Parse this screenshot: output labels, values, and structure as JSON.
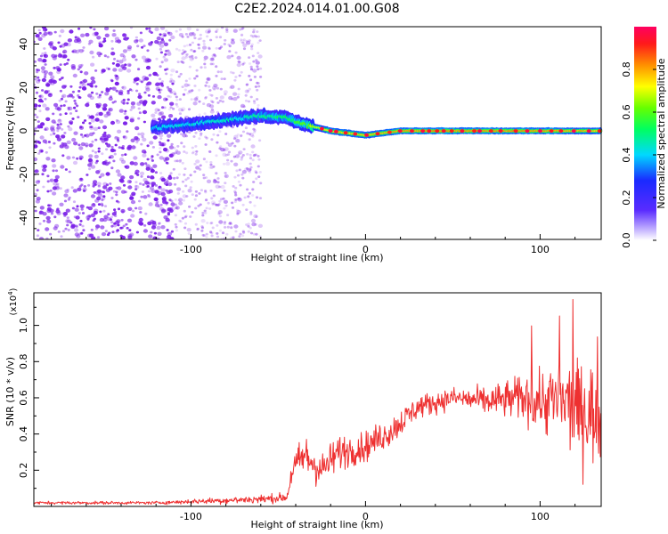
{
  "chart_data": [
    {
      "type": "heatmap",
      "title": "C2E2.2024.014.01.00.G08",
      "xlabel": "Height of straight line (km)",
      "ylabel": "Frequency (Hz)",
      "xlim": [
        -190,
        135
      ],
      "ylim": [
        -50,
        48
      ],
      "x_ticks": [
        -100,
        0,
        100
      ],
      "y_ticks": [
        -40,
        -20,
        0,
        20,
        40
      ],
      "colorbar": {
        "label": "Normalized spectral amplitude",
        "range": [
          0,
          1
        ],
        "ticks": [
          "0.0",
          "0.2",
          "0.4",
          "0.6",
          "0.8"
        ]
      },
      "ridge": [
        {
          "x": -120,
          "y": 1.5,
          "amp": 0.45
        },
        {
          "x": -100,
          "y": 3.0,
          "amp": 0.5
        },
        {
          "x": -80,
          "y": 5.0,
          "amp": 0.5
        },
        {
          "x": -60,
          "y": 7.0,
          "amp": 0.55
        },
        {
          "x": -45,
          "y": 6.0,
          "amp": 0.6
        },
        {
          "x": -35,
          "y": 3.0,
          "amp": 0.7
        },
        {
          "x": -20,
          "y": 0.0,
          "amp": 0.9
        },
        {
          "x": 0,
          "y": -2.0,
          "amp": 0.9
        },
        {
          "x": 20,
          "y": 0.0,
          "amp": 0.95
        },
        {
          "x": 60,
          "y": 0.0,
          "amp": 0.95
        },
        {
          "x": 100,
          "y": 0.0,
          "amp": 0.95
        },
        {
          "x": 135,
          "y": 0.0,
          "amp": 0.9
        }
      ]
    },
    {
      "type": "line",
      "xlabel": "Height of straight line (km)",
      "ylabel": "SNR (10 * v/v)",
      "y_multiplier": "(x10",
      "y_multiplier_exp": "4",
      "y_multiplier_close": ")",
      "xlim": [
        -190,
        135
      ],
      "ylim": [
        0,
        1.18
      ],
      "x_ticks": [
        -100,
        0,
        100
      ],
      "y_ticks": [
        "0.2",
        "0.4",
        "0.6",
        "0.8",
        "1.0"
      ],
      "series_color": "#ee3030",
      "envelope": [
        {
          "x": -190,
          "mean": 0.02,
          "spread": 0.01
        },
        {
          "x": -120,
          "mean": 0.02,
          "spread": 0.01
        },
        {
          "x": -90,
          "mean": 0.03,
          "spread": 0.02
        },
        {
          "x": -60,
          "mean": 0.04,
          "spread": 0.03
        },
        {
          "x": -45,
          "mean": 0.05,
          "spread": 0.03
        },
        {
          "x": -42,
          "mean": 0.2,
          "spread": 0.1
        },
        {
          "x": -35,
          "mean": 0.28,
          "spread": 0.15
        },
        {
          "x": -25,
          "mean": 0.2,
          "spread": 0.12
        },
        {
          "x": -15,
          "mean": 0.3,
          "spread": 0.12
        },
        {
          "x": 0,
          "mean": 0.33,
          "spread": 0.1
        },
        {
          "x": 15,
          "mean": 0.42,
          "spread": 0.1
        },
        {
          "x": 30,
          "mean": 0.55,
          "spread": 0.08
        },
        {
          "x": 50,
          "mean": 0.6,
          "spread": 0.07
        },
        {
          "x": 70,
          "mean": 0.58,
          "spread": 0.1
        },
        {
          "x": 90,
          "mean": 0.6,
          "spread": 0.15
        },
        {
          "x": 110,
          "mean": 0.58,
          "spread": 0.28
        },
        {
          "x": 135,
          "mean": 0.5,
          "spread": 0.35
        }
      ]
    }
  ],
  "colors": {
    "background": "#ffffff",
    "axis": "#000000",
    "scatter_base": "#7a1fe8"
  }
}
